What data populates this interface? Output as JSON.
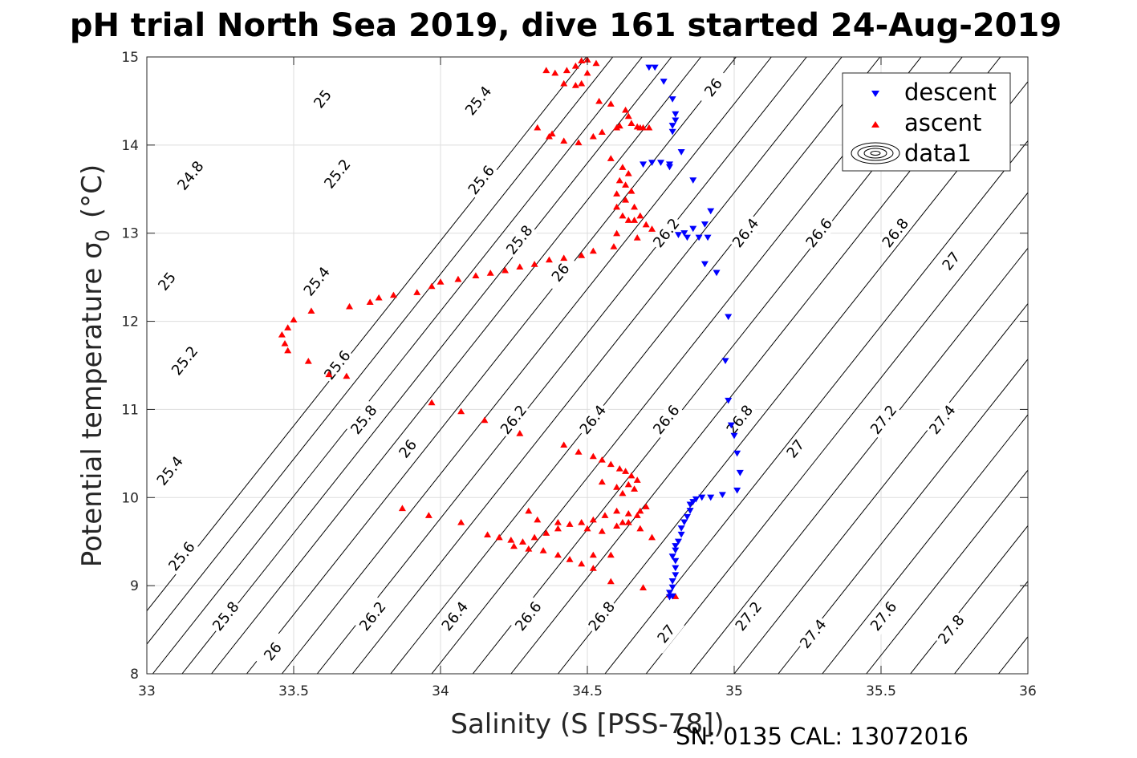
{
  "chart_data": {
    "type": "scatter",
    "title": "pH trial North Sea 2019, dive 161 started 24-Aug-2019",
    "xlabel": "Salinity (S [PSS-78])",
    "ylabel_main": "Potential temperature σ",
    "ylabel_sub": "0",
    "ylabel_unit": "(°C)",
    "xlim": [
      33,
      36
    ],
    "ylim": [
      8,
      15
    ],
    "xticks": [
      33,
      33.5,
      34,
      34.5,
      35,
      35.5,
      36
    ],
    "yticks": [
      8,
      9,
      10,
      11,
      12,
      13,
      14,
      15
    ],
    "grid": true,
    "legend_position": "top-right",
    "footer": "SN: 0135  CAL: 13072016",
    "colors": {
      "descent": "#0000ff",
      "ascent": "#ff0000",
      "contour": "#000000",
      "grid": "#dddddd"
    },
    "contours": {
      "slope_temp_per_salinity": 4.2,
      "levels": [
        24.8,
        25,
        25.2,
        25.4,
        25.6,
        25.8,
        26,
        26.2,
        26.4,
        26.6,
        26.8,
        27,
        27.2,
        27.4,
        27.6,
        27.8
      ],
      "line_intercepts_at_T8": [
        32.83,
        32.92,
        33.02,
        33.12,
        33.22,
        33.34,
        33.46,
        33.58,
        33.7,
        33.83,
        33.97,
        34.11,
        34.24,
        34.4,
        34.56,
        34.7,
        34.85,
        35.0,
        35.15,
        35.3,
        35.45,
        35.6,
        35.75,
        35.9,
        36.05,
        36.2,
        36.35,
        36.5,
        36.65,
        36.8
      ],
      "labels": [
        {
          "text": "25",
          "x": 33.6,
          "y": 14.52
        },
        {
          "text": "25.4",
          "x": 34.13,
          "y": 14.5
        },
        {
          "text": "26",
          "x": 34.93,
          "y": 14.65
        },
        {
          "text": "24.8",
          "x": 33.15,
          "y": 13.65
        },
        {
          "text": "25.2",
          "x": 33.65,
          "y": 13.67
        },
        {
          "text": "25.6",
          "x": 34.14,
          "y": 13.6
        },
        {
          "text": "25.8",
          "x": 34.27,
          "y": 12.92
        },
        {
          "text": "26.2",
          "x": 34.77,
          "y": 13.0
        },
        {
          "text": "26.4",
          "x": 35.04,
          "y": 13.0
        },
        {
          "text": "26.6",
          "x": 35.29,
          "y": 13.0
        },
        {
          "text": "26.8",
          "x": 35.55,
          "y": 13.0
        },
        {
          "text": "27",
          "x": 35.74,
          "y": 12.68
        },
        {
          "text": "25",
          "x": 33.07,
          "y": 12.45
        },
        {
          "text": "25.4",
          "x": 33.58,
          "y": 12.45
        },
        {
          "text": "26",
          "x": 34.41,
          "y": 12.55
        },
        {
          "text": "25.2",
          "x": 33.13,
          "y": 11.55
        },
        {
          "text": "25.6",
          "x": 33.65,
          "y": 11.5
        },
        {
          "text": "25.8",
          "x": 33.74,
          "y": 10.88
        },
        {
          "text": "26.2",
          "x": 34.25,
          "y": 10.88
        },
        {
          "text": "26.4",
          "x": 34.52,
          "y": 10.88
        },
        {
          "text": "26.6",
          "x": 34.77,
          "y": 10.88
        },
        {
          "text": "26.8",
          "x": 35.02,
          "y": 10.88
        },
        {
          "text": "27.2",
          "x": 35.51,
          "y": 10.88
        },
        {
          "text": "27.4",
          "x": 35.71,
          "y": 10.88
        },
        {
          "text": "26",
          "x": 33.89,
          "y": 10.55
        },
        {
          "text": "27",
          "x": 35.21,
          "y": 10.55
        },
        {
          "text": "25.4",
          "x": 33.08,
          "y": 10.3
        },
        {
          "text": "25.6",
          "x": 33.12,
          "y": 9.33
        },
        {
          "text": "25.8",
          "x": 33.27,
          "y": 8.65
        },
        {
          "text": "26",
          "x": 33.43,
          "y": 8.25
        },
        {
          "text": "26.2",
          "x": 33.77,
          "y": 8.65
        },
        {
          "text": "26.4",
          "x": 34.05,
          "y": 8.65
        },
        {
          "text": "26.6",
          "x": 34.3,
          "y": 8.65
        },
        {
          "text": "26.8",
          "x": 34.55,
          "y": 8.65
        },
        {
          "text": "27",
          "x": 34.77,
          "y": 8.45
        },
        {
          "text": "27.2",
          "x": 35.05,
          "y": 8.65
        },
        {
          "text": "27.4",
          "x": 35.27,
          "y": 8.45
        },
        {
          "text": "27.6",
          "x": 35.51,
          "y": 8.65
        },
        {
          "text": "27.8",
          "x": 35.74,
          "y": 8.5
        }
      ]
    },
    "series": [
      {
        "name": "descent",
        "marker": "triangle-down",
        "points": [
          [
            34.71,
            14.88
          ],
          [
            34.73,
            14.88
          ],
          [
            34.76,
            14.72
          ],
          [
            34.79,
            14.52
          ],
          [
            34.8,
            14.35
          ],
          [
            34.8,
            14.28
          ],
          [
            34.79,
            14.22
          ],
          [
            34.79,
            14.15
          ],
          [
            34.82,
            13.92
          ],
          [
            34.86,
            13.6
          ],
          [
            34.78,
            13.78
          ],
          [
            34.75,
            13.8
          ],
          [
            34.72,
            13.8
          ],
          [
            34.69,
            13.78
          ],
          [
            34.78,
            13.75
          ],
          [
            34.92,
            13.25
          ],
          [
            34.9,
            13.1
          ],
          [
            34.86,
            13.05
          ],
          [
            34.83,
            13.0
          ],
          [
            34.81,
            12.98
          ],
          [
            34.84,
            12.95
          ],
          [
            34.88,
            12.95
          ],
          [
            34.91,
            12.95
          ],
          [
            34.9,
            12.65
          ],
          [
            34.94,
            12.55
          ],
          [
            34.98,
            12.05
          ],
          [
            34.97,
            11.55
          ],
          [
            34.98,
            11.1
          ],
          [
            34.99,
            10.82
          ],
          [
            35.0,
            10.7
          ],
          [
            35.01,
            10.5
          ],
          [
            35.02,
            10.28
          ],
          [
            35.01,
            10.08
          ],
          [
            34.96,
            10.03
          ],
          [
            34.92,
            10.0
          ],
          [
            34.89,
            10.0
          ],
          [
            34.87,
            9.98
          ],
          [
            34.86,
            9.95
          ],
          [
            34.85,
            9.92
          ],
          [
            34.85,
            9.85
          ],
          [
            34.84,
            9.78
          ],
          [
            34.83,
            9.72
          ],
          [
            34.82,
            9.65
          ],
          [
            34.82,
            9.58
          ],
          [
            34.81,
            9.5
          ],
          [
            34.8,
            9.45
          ],
          [
            34.8,
            9.4
          ],
          [
            34.79,
            9.33
          ],
          [
            34.8,
            9.28
          ],
          [
            34.8,
            9.2
          ],
          [
            34.8,
            9.12
          ],
          [
            34.79,
            9.05
          ],
          [
            34.79,
            8.98
          ],
          [
            34.78,
            8.92
          ],
          [
            34.79,
            8.88
          ],
          [
            34.78,
            8.87
          ]
        ]
      },
      {
        "name": "ascent",
        "marker": "triangle-up",
        "points": [
          [
            34.36,
            14.85
          ],
          [
            34.39,
            14.82
          ],
          [
            34.43,
            14.85
          ],
          [
            34.46,
            14.9
          ],
          [
            34.48,
            14.96
          ],
          [
            34.5,
            14.97
          ],
          [
            34.53,
            14.93
          ],
          [
            34.5,
            14.82
          ],
          [
            34.48,
            14.7
          ],
          [
            34.46,
            14.68
          ],
          [
            34.42,
            14.7
          ],
          [
            34.54,
            14.5
          ],
          [
            34.58,
            14.47
          ],
          [
            34.63,
            14.4
          ],
          [
            34.64,
            14.33
          ],
          [
            34.65,
            14.25
          ],
          [
            34.6,
            14.2
          ],
          [
            34.55,
            14.15
          ],
          [
            34.52,
            14.1
          ],
          [
            34.47,
            14.03
          ],
          [
            34.42,
            14.05
          ],
          [
            34.38,
            14.13
          ],
          [
            34.33,
            14.2
          ],
          [
            34.37,
            14.1
          ],
          [
            34.61,
            14.22
          ],
          [
            34.67,
            14.21
          ],
          [
            34.69,
            14.2
          ],
          [
            34.71,
            14.2
          ],
          [
            34.68,
            14.2
          ],
          [
            34.58,
            13.85
          ],
          [
            34.62,
            13.75
          ],
          [
            34.64,
            13.68
          ],
          [
            34.61,
            13.6
          ],
          [
            34.63,
            13.55
          ],
          [
            34.65,
            13.48
          ],
          [
            34.6,
            13.45
          ],
          [
            34.63,
            13.38
          ],
          [
            34.6,
            13.3
          ],
          [
            34.66,
            13.3
          ],
          [
            34.62,
            13.2
          ],
          [
            34.64,
            13.15
          ],
          [
            34.68,
            13.2
          ],
          [
            34.66,
            13.15
          ],
          [
            34.7,
            13.1
          ],
          [
            34.72,
            13.05
          ],
          [
            34.6,
            13.0
          ],
          [
            34.67,
            12.95
          ],
          [
            34.59,
            12.85
          ],
          [
            34.52,
            12.8
          ],
          [
            34.48,
            12.75
          ],
          [
            34.42,
            12.72
          ],
          [
            34.37,
            12.7
          ],
          [
            34.32,
            12.65
          ],
          [
            34.27,
            12.62
          ],
          [
            34.22,
            12.58
          ],
          [
            34.17,
            12.55
          ],
          [
            34.12,
            12.52
          ],
          [
            34.06,
            12.48
          ],
          [
            34.0,
            12.45
          ],
          [
            33.97,
            12.4
          ],
          [
            33.92,
            12.33
          ],
          [
            33.84,
            12.3
          ],
          [
            33.79,
            12.27
          ],
          [
            33.76,
            12.22
          ],
          [
            33.69,
            12.17
          ],
          [
            33.56,
            12.12
          ],
          [
            33.5,
            12.02
          ],
          [
            33.48,
            11.93
          ],
          [
            33.46,
            11.85
          ],
          [
            33.47,
            11.75
          ],
          [
            33.48,
            11.67
          ],
          [
            33.55,
            11.55
          ],
          [
            33.62,
            11.4
          ],
          [
            33.68,
            11.38
          ],
          [
            33.97,
            11.08
          ],
          [
            34.07,
            10.98
          ],
          [
            34.15,
            10.88
          ],
          [
            34.27,
            10.73
          ],
          [
            34.42,
            10.6
          ],
          [
            34.47,
            10.52
          ],
          [
            34.52,
            10.47
          ],
          [
            34.55,
            10.43
          ],
          [
            34.58,
            10.38
          ],
          [
            34.61,
            10.33
          ],
          [
            34.63,
            10.3
          ],
          [
            34.65,
            10.25
          ],
          [
            34.67,
            10.2
          ],
          [
            34.64,
            10.15
          ],
          [
            34.6,
            10.12
          ],
          [
            34.55,
            10.18
          ],
          [
            34.66,
            10.1
          ],
          [
            34.62,
            10.05
          ],
          [
            34.7,
            9.9
          ],
          [
            34.68,
            9.85
          ],
          [
            34.64,
            9.82
          ],
          [
            34.6,
            9.85
          ],
          [
            34.56,
            9.8
          ],
          [
            34.52,
            9.75
          ],
          [
            34.48,
            9.72
          ],
          [
            34.44,
            9.7
          ],
          [
            34.4,
            9.65
          ],
          [
            34.36,
            9.6
          ],
          [
            34.32,
            9.55
          ],
          [
            34.28,
            9.5
          ],
          [
            34.24,
            9.52
          ],
          [
            34.2,
            9.55
          ],
          [
            34.16,
            9.58
          ],
          [
            34.25,
            9.45
          ],
          [
            34.3,
            9.42
          ],
          [
            34.35,
            9.4
          ],
          [
            34.4,
            9.35
          ],
          [
            34.44,
            9.3
          ],
          [
            34.48,
            9.25
          ],
          [
            34.52,
            9.2
          ],
          [
            34.3,
            9.85
          ],
          [
            34.33,
            9.75
          ],
          [
            34.4,
            9.72
          ],
          [
            34.5,
            9.65
          ],
          [
            34.55,
            9.62
          ],
          [
            34.6,
            9.68
          ],
          [
            34.64,
            9.72
          ],
          [
            34.68,
            9.65
          ],
          [
            34.72,
            9.55
          ],
          [
            34.58,
            9.35
          ],
          [
            34.52,
            9.35
          ],
          [
            34.62,
            9.72
          ],
          [
            34.67,
            9.8
          ],
          [
            34.58,
            9.05
          ],
          [
            34.69,
            8.98
          ],
          [
            34.78,
            8.9
          ],
          [
            34.8,
            8.88
          ],
          [
            33.87,
            9.88
          ],
          [
            33.96,
            9.8
          ],
          [
            34.07,
            9.72
          ]
        ]
      }
    ],
    "legend": [
      {
        "label": "descent",
        "marker": "triangle-down",
        "color": "#0000ff"
      },
      {
        "label": "ascent",
        "marker": "triangle-up",
        "color": "#ff0000"
      },
      {
        "label": "data1",
        "marker": "contour-ellipses",
        "color": "#000000"
      }
    ]
  }
}
